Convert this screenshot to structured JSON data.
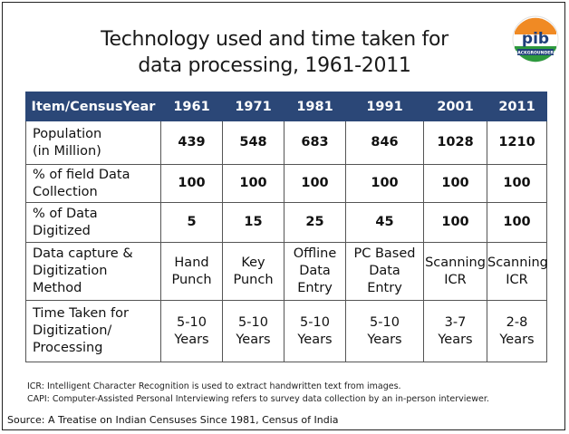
{
  "title_line1": "Technology used and time taken for",
  "title_line2": "data processing, 1961-2011",
  "logo": {
    "text": "pib",
    "band": "BACKGROUNDERS",
    "colors": [
      "#f08a24",
      "#ffffff",
      "#2e9a3e"
    ]
  },
  "table": {
    "headers": [
      "Item/CensusYear",
      "1961",
      "1971",
      "1981",
      "1991",
      "2001",
      "2011"
    ],
    "rows": [
      {
        "label_lines": [
          "Population",
          "(in Million)"
        ],
        "cells": [
          [
            "439"
          ],
          [
            "548"
          ],
          [
            "683"
          ],
          [
            "846"
          ],
          [
            "1028"
          ],
          [
            "1210"
          ]
        ]
      },
      {
        "label_lines": [
          "% of field Data",
          "Collection"
        ],
        "cells": [
          [
            "100"
          ],
          [
            "100"
          ],
          [
            "100"
          ],
          [
            "100"
          ],
          [
            "100"
          ],
          [
            "100"
          ]
        ]
      },
      {
        "label_lines": [
          "% of Data",
          "Digitized"
        ],
        "cells": [
          [
            "5"
          ],
          [
            "15"
          ],
          [
            "25"
          ],
          [
            "45"
          ],
          [
            "100"
          ],
          [
            "100"
          ]
        ]
      },
      {
        "label_lines": [
          "Data capture &",
          "Digitization",
          "Method"
        ],
        "cells": [
          [
            "Hand",
            "Punch"
          ],
          [
            "Key",
            "Punch"
          ],
          [
            "Offline",
            "Data",
            "Entry"
          ],
          [
            "PC Based",
            "Data",
            "Entry"
          ],
          [
            "Scanning",
            "ICR"
          ],
          [
            "Scanning",
            "ICR"
          ]
        ]
      },
      {
        "label_lines": [
          "Time Taken for",
          "Digitization/",
          "Processing"
        ],
        "cells": [
          [
            "5-10",
            "Years"
          ],
          [
            "5-10",
            "Years"
          ],
          [
            "5-10",
            "Years"
          ],
          [
            "5-10",
            "Years"
          ],
          [
            "3-7",
            "Years"
          ],
          [
            "2-8",
            "Years"
          ]
        ]
      }
    ]
  },
  "notes": {
    "icr": "ICR: Intelligent Character Recognition is used to extract handwritten text from images.",
    "capi": "CAPI: Computer-Assisted Personal Interviewing refers to survey data collection by an in-person interviewer."
  },
  "source": "Source: A Treatise on Indian Censuses Since 1981, Census of India"
}
